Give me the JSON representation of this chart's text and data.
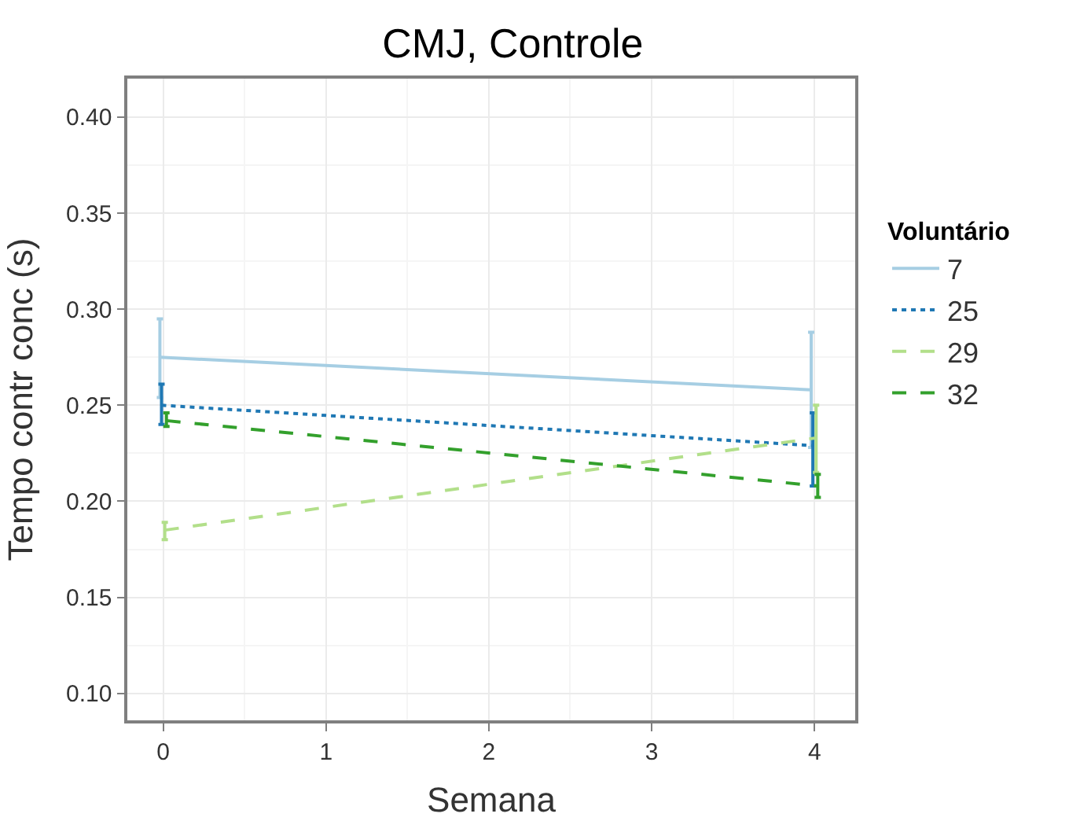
{
  "chart_data": {
    "type": "line",
    "title": "CMJ, Controle",
    "xlabel": "Semana",
    "ylabel": "Tempo contr conc (s)",
    "legend_title": "Voluntário",
    "legend": "right",
    "grid": true,
    "marker": "none",
    "xlim": [
      -0.22,
      4.25
    ],
    "xticks": [
      0,
      1,
      2,
      3,
      4
    ],
    "ylim": [
      0.086,
      0.42
    ],
    "yticks": [
      {
        "value": 0.1,
        "label": "0.10"
      },
      {
        "value": 0.15,
        "label": "0.15"
      },
      {
        "value": 0.2,
        "label": "0.20"
      },
      {
        "value": 0.25,
        "label": "0.25"
      },
      {
        "value": 0.3,
        "label": "0.30"
      },
      {
        "value": 0.35,
        "label": "0.35"
      },
      {
        "value": 0.4,
        "label": "0.40"
      }
    ],
    "series": [
      {
        "name": "7",
        "color": "#a6cee3",
        "line_style": "solid",
        "x": [
          -0.02,
          3.98
        ],
        "values": [
          0.275,
          0.258
        ],
        "errors": [
          [
            0.254,
            0.295
          ],
          [
            0.228,
            0.288
          ]
        ]
      },
      {
        "name": "25",
        "color": "#1f78b4",
        "line_style": "dotted",
        "x": [
          -0.01,
          3.99
        ],
        "values": [
          0.25,
          0.229
        ],
        "errors": [
          [
            0.24,
            0.261
          ],
          [
            0.208,
            0.246
          ]
        ]
      },
      {
        "name": "29",
        "color": "#b2df8a",
        "line_style": "dashed",
        "x": [
          0.01,
          4.01
        ],
        "values": [
          0.185,
          0.233
        ],
        "errors": [
          [
            0.18,
            0.189
          ],
          [
            0.215,
            0.25
          ]
        ]
      },
      {
        "name": "32",
        "color": "#33a02c",
        "line_style": "dashed",
        "x": [
          0.02,
          4.02
        ],
        "values": [
          0.242,
          0.208
        ],
        "errors": [
          [
            0.239,
            0.246
          ],
          [
            0.202,
            0.214
          ]
        ]
      }
    ]
  }
}
